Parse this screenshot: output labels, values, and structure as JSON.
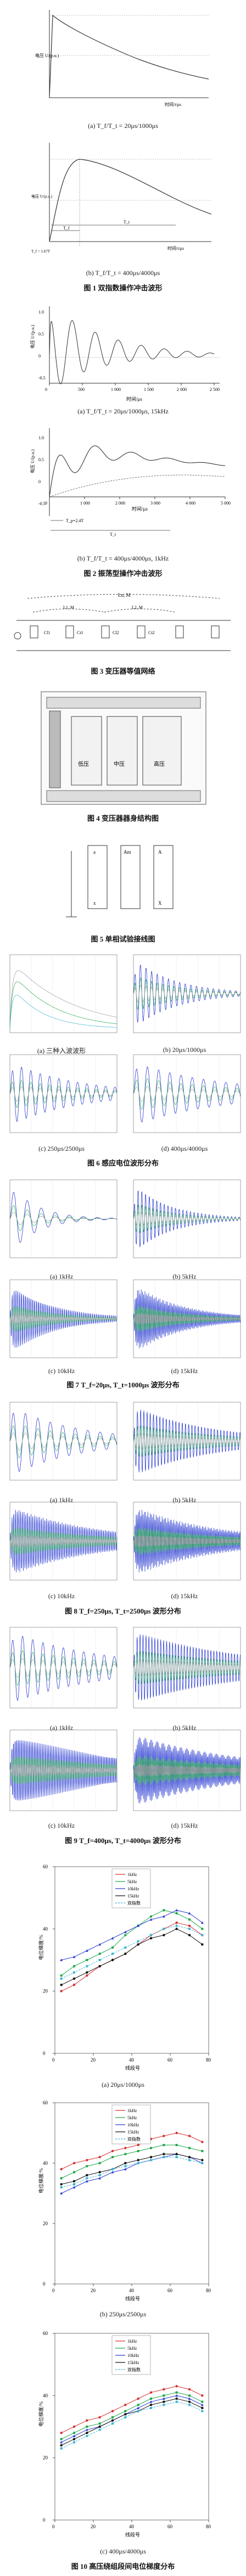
{
  "captions": {
    "c1a": "(a) T_f/T_t = 20μs/1000μs",
    "c1b": "(b) T_f/T_t = 400μs/4000μs",
    "fig1": "图 1   双指数操作冲击波形",
    "c2a": "(a) T_f/T_t = 20μs/1000μs, 15kHz",
    "c2b": "(b) T_f/T_t = 400μs/4000μs, 1kHz",
    "fig2": "图 2   振荡型操作冲击波形",
    "fig3": "图 3   变压器等值网络",
    "fig4": "图 4   变压器器身结构图",
    "fig5": "图 5   单相试验接线图",
    "c6a": "(a) 三种入波波形",
    "c6b": "(b) 20μs/1000μs",
    "c6c": "(c) 250μs/2500μs",
    "c6d": "(d) 400μs/4000μs",
    "fig6": "图 6   感应电位波形分布",
    "c7a": "(a) 1kHz",
    "c7b": "(b) 5kHz",
    "c7c": "(c) 10kHz",
    "c7d": "(d) 15kHz",
    "fig7": "图 7   T_f=20μs, T_t=1000μs 波形分布",
    "c8a": "(a) 1kHz",
    "c8b": "(b) 5kHz",
    "c8c": "(c) 10kHz",
    "c8d": "(d) 15kHz",
    "fig8": "图 8   T_f=250μs, T_t=2500μs 波形分布",
    "c9a": "(a) 1kHz",
    "c9b": "(b) 5kHz",
    "c9c": "(c) 10kHz",
    "c9d": "(d) 15kHz",
    "fig9": "图 9   T_f=400μs, T_t=4000μs 波形分布",
    "c10a": "(a) 20μs/1000μs",
    "c10b": "(b) 250μs/2500μs",
    "c10c": "(c) 400μs/4000μs",
    "fig10": "图 10   高压绕组段间电位梯度分布"
  },
  "labels": {
    "time_us": "时间/μs",
    "voltage": "电压 U/(p.u.)",
    "voltage_short": "电压 U/(p.u.)",
    "t_axis": "时间/t/μs",
    "tf": "T_f",
    "tt": "T_t",
    "tp": "T_p=2.4T",
    "t_small": "T_f = 1.67T",
    "grad_y": "电位梯度/%",
    "seg_x": "线段号",
    "lv": "低压",
    "mv": "中压",
    "hv": "高压",
    "am": "Am",
    "a": "A",
    "x": "X",
    "a_lower": "a",
    "x_lower": "x",
    "legend_1k": "1kHz",
    "legend_5k": "5kHz",
    "legend_10k": "10kHz",
    "legend_15k": "15kHz",
    "legend_dbl": "双指数",
    "cl1": "Cl1",
    "ct1": "Ct1",
    "cl2": "Cl2",
    "ct2": "Ct2",
    "l1": "L1, M",
    "l2": "L2, M",
    "ln": "Ln, M"
  },
  "ticks": {
    "fig2a_x": [
      "0",
      "500",
      "1 000",
      "1 500",
      "2 000",
      "2 500"
    ],
    "fig2b_x": [
      "0",
      "1 000",
      "2 000",
      "3 000",
      "4 000",
      "5 000"
    ],
    "fig2_y": [
      "1.0",
      "0.5",
      "0",
      "-0.5"
    ],
    "fig10_x": [
      "0",
      "20",
      "40",
      "60",
      "80"
    ],
    "fig10a_y": [
      "0",
      "20",
      "40",
      "60"
    ],
    "fig10b_y": [
      "0",
      "20",
      "40",
      "60"
    ],
    "fig10c_y": [
      "0",
      "20",
      "40",
      "60"
    ]
  },
  "colors": {
    "blue": "#2a3bd1",
    "green": "#1fa84a",
    "red": "#d63030",
    "black": "#111111",
    "gray": "#999999",
    "cyan": "#38b5d6"
  },
  "chart_data": [
    {
      "type": "line",
      "name": "fig1a",
      "title": "",
      "series": [
        {
          "name": "",
          "values": [
            0,
            1.0,
            0.92,
            0.8,
            0.7,
            0.61,
            0.54,
            0.47
          ]
        }
      ]
    },
    {
      "type": "line",
      "name": "fig1b",
      "title": "",
      "series": [
        {
          "name": "",
          "values": [
            0,
            0.6,
            0.9,
            1.0,
            0.96,
            0.88,
            0.8,
            0.72
          ]
        }
      ]
    },
    {
      "type": "line",
      "name": "fig2a",
      "title": "",
      "xlim": [
        0,
        2500
      ],
      "ylim": [
        -0.5,
        1.0
      ],
      "series": [
        {
          "name": "",
          "values": []
        }
      ]
    },
    {
      "type": "line",
      "name": "fig2b",
      "title": "",
      "xlim": [
        0,
        5000
      ],
      "ylim": [
        -0.5,
        1.0
      ],
      "series": [
        {
          "name": "",
          "values": []
        }
      ]
    },
    {
      "type": "line",
      "name": "fig10a",
      "xlabel": "线段号",
      "ylabel": "电位梯度/%",
      "ylim": [
        0,
        60
      ],
      "series": [
        {
          "name": "1kHz",
          "values": [
            20,
            22,
            25,
            28,
            30,
            32,
            35,
            38,
            40,
            42,
            41,
            38
          ]
        },
        {
          "name": "5kHz",
          "values": [
            25,
            28,
            30,
            32,
            34,
            38,
            41,
            44,
            46,
            45,
            43,
            40
          ]
        },
        {
          "name": "10kHz",
          "values": [
            30,
            31,
            33,
            35,
            37,
            39,
            41,
            43,
            44,
            46,
            45,
            42
          ]
        },
        {
          "name": "15kHz",
          "values": [
            22,
            24,
            26,
            28,
            30,
            32,
            35,
            37,
            38,
            40,
            38,
            35
          ]
        },
        {
          "name": "双指数",
          "values": [
            24,
            26,
            28,
            30,
            32,
            34,
            36,
            38,
            40,
            41,
            40,
            38
          ]
        }
      ]
    },
    {
      "type": "line",
      "name": "fig10b",
      "xlabel": "线段号",
      "ylabel": "电位梯度/%",
      "ylim": [
        0,
        60
      ],
      "series": [
        {
          "name": "1kHz",
          "values": [
            38,
            40,
            41,
            42,
            44,
            45,
            46,
            48,
            49,
            50,
            49,
            47
          ]
        },
        {
          "name": "5kHz",
          "values": [
            35,
            37,
            39,
            40,
            42,
            43,
            44,
            45,
            46,
            46,
            45,
            44
          ]
        },
        {
          "name": "10kHz",
          "values": [
            30,
            32,
            34,
            35,
            37,
            38,
            40,
            41,
            42,
            43,
            42,
            40
          ]
        },
        {
          "name": "15kHz",
          "values": [
            33,
            34,
            36,
            37,
            38,
            40,
            41,
            42,
            43,
            43,
            42,
            41
          ]
        },
        {
          "name": "双指数",
          "values": [
            32,
            33,
            35,
            36,
            38,
            39,
            40,
            41,
            42,
            42,
            41,
            40
          ]
        }
      ]
    },
    {
      "type": "line",
      "name": "fig10c",
      "xlabel": "线段号",
      "ylabel": "电位梯度/%",
      "ylim": [
        0,
        60
      ],
      "series": [
        {
          "name": "1kHz",
          "values": [
            28,
            30,
            32,
            33,
            35,
            37,
            39,
            41,
            42,
            43,
            42,
            40
          ]
        },
        {
          "name": "5kHz",
          "values": [
            26,
            28,
            30,
            31,
            33,
            35,
            37,
            39,
            40,
            41,
            40,
            38
          ]
        },
        {
          "name": "10kHz",
          "values": [
            25,
            27,
            29,
            30,
            32,
            34,
            36,
            38,
            39,
            40,
            39,
            37
          ]
        },
        {
          "name": "15kHz",
          "values": [
            24,
            26,
            28,
            30,
            32,
            34,
            35,
            37,
            38,
            39,
            38,
            36
          ]
        },
        {
          "name": "双指数",
          "values": [
            23,
            25,
            27,
            29,
            31,
            33,
            35,
            36,
            37,
            38,
            37,
            35
          ]
        }
      ]
    }
  ]
}
